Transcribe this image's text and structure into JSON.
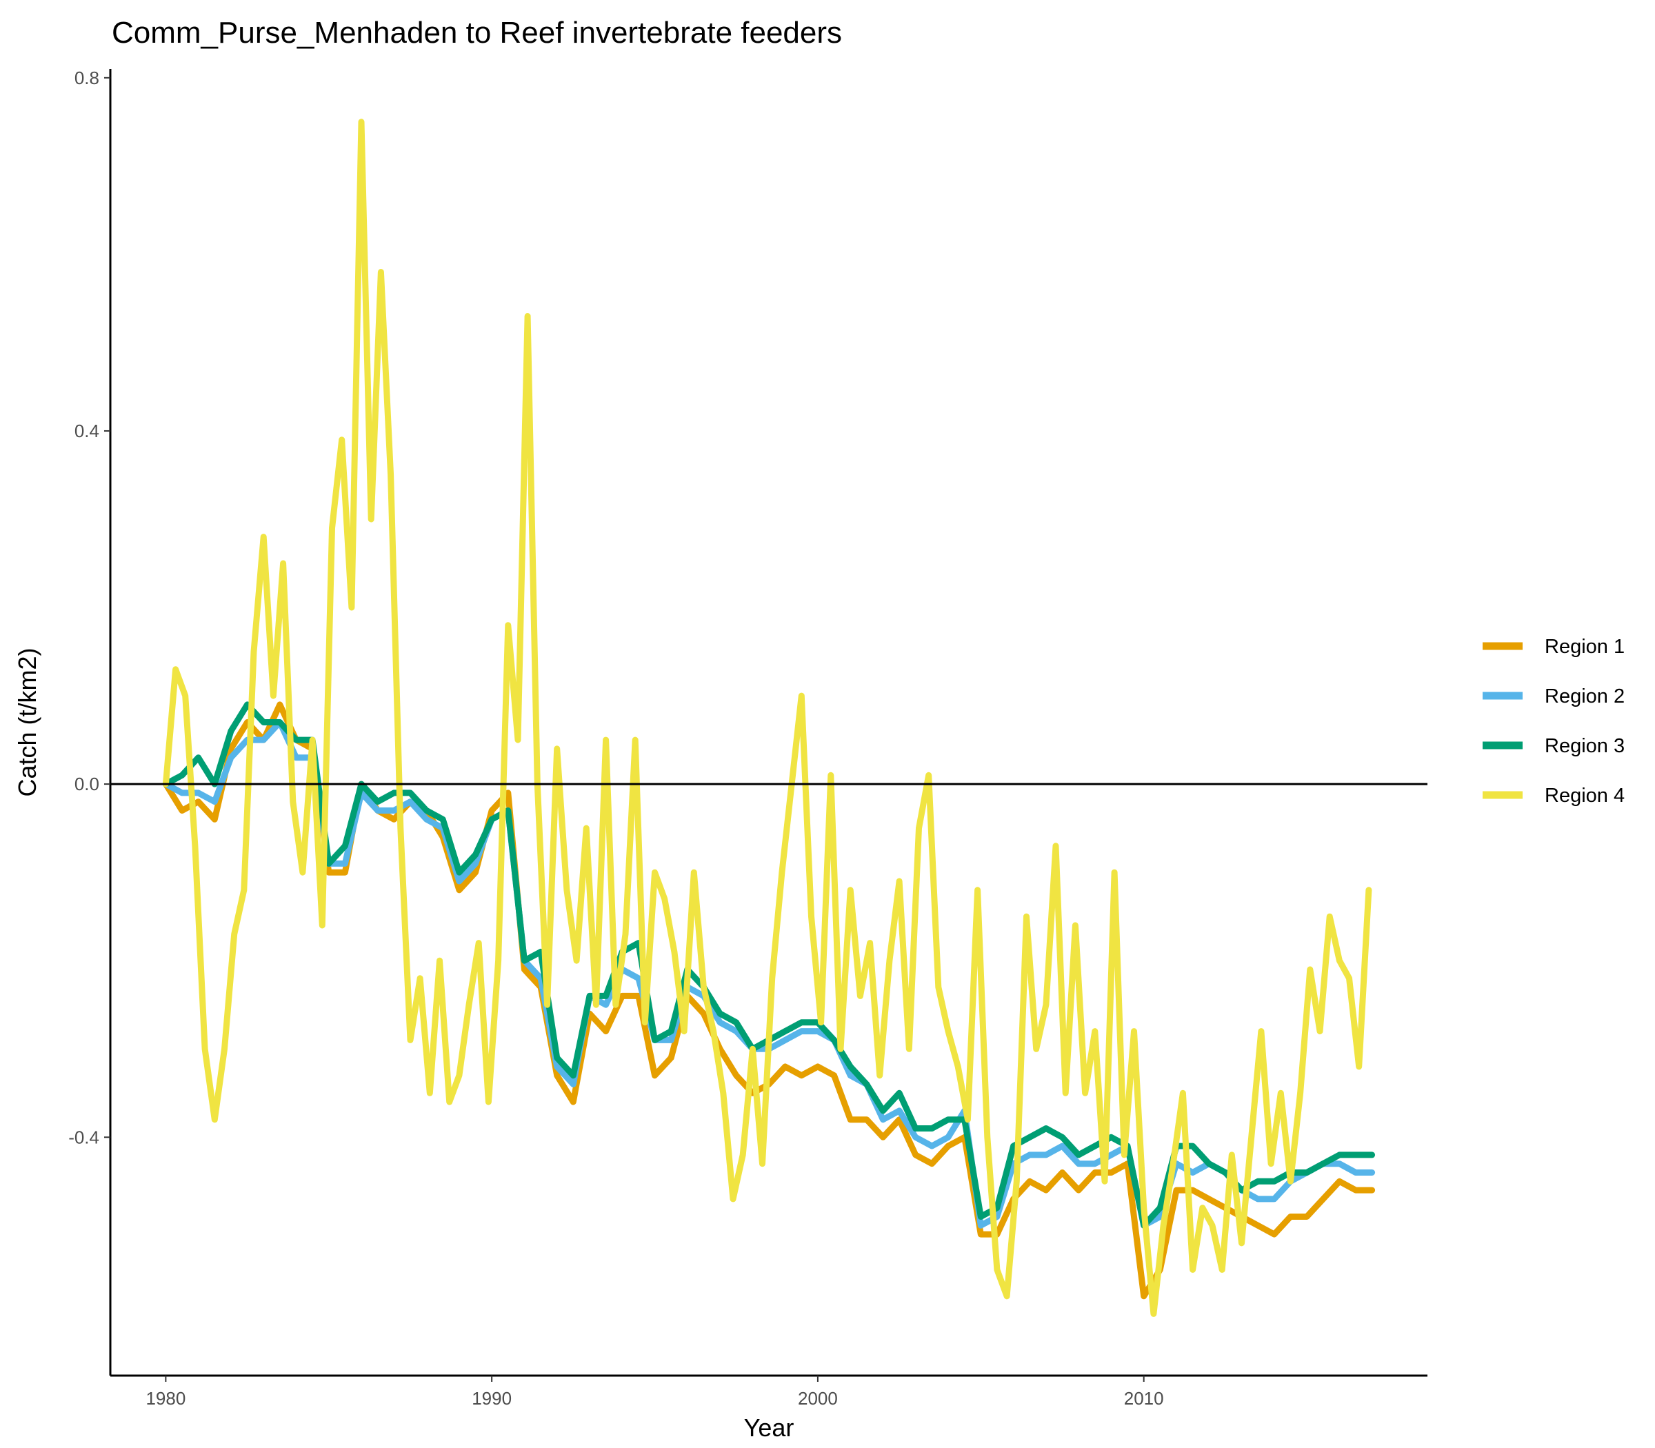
{
  "chart_data": {
    "type": "line",
    "title": "Comm_Purse_Menhaden to Reef invertebrate feeders",
    "xlabel": "Year",
    "ylabel": "Catch (t/km2)",
    "xlim": [
      1978.3,
      2018.7
    ],
    "ylim": [
      -0.67,
      0.81
    ],
    "xticks": [
      1980,
      1990,
      2000,
      2010
    ],
    "yticks": [
      0.8,
      0.4,
      0.0,
      -0.4
    ],
    "ytick_labels": [
      "0.8",
      "0.4",
      "0.0",
      "-0.4"
    ],
    "reference_line_y": 0.0,
    "grid": false,
    "legend_position": "right",
    "series": [
      {
        "name": "Region 1",
        "color": "#E69F00",
        "x": [
          1980.0,
          1980.5,
          1981.0,
          1981.5,
          1982.0,
          1982.5,
          1983.0,
          1983.5,
          1984.0,
          1984.5,
          1985.0,
          1985.5,
          1986.0,
          1986.5,
          1987.0,
          1987.5,
          1988.0,
          1988.5,
          1989.0,
          1989.5,
          1990.0,
          1990.5,
          1991.0,
          1991.5,
          1992.0,
          1992.5,
          1993.0,
          1993.5,
          1994.0,
          1994.5,
          1995.0,
          1995.5,
          1996.0,
          1996.5,
          1997.0,
          1997.5,
          1998.0,
          1998.5,
          1999.0,
          1999.5,
          2000.0,
          2000.5,
          2001.0,
          2001.5,
          2002.0,
          2002.5,
          2003.0,
          2003.5,
          2004.0,
          2004.5,
          2005.0,
          2005.5,
          2006.0,
          2006.5,
          2007.0,
          2007.5,
          2008.0,
          2008.5,
          2009.0,
          2009.5,
          2010.0,
          2010.5,
          2011.0,
          2011.5,
          2012.0,
          2012.5,
          2013.0,
          2013.5,
          2014.0,
          2014.5,
          2015.0,
          2015.5,
          2016.0,
          2016.5,
          2017.0
        ],
        "values": [
          0.0,
          -0.03,
          -0.02,
          -0.04,
          0.04,
          0.07,
          0.05,
          0.09,
          0.05,
          0.04,
          -0.1,
          -0.1,
          0.0,
          -0.03,
          -0.04,
          -0.02,
          -0.03,
          -0.06,
          -0.12,
          -0.1,
          -0.03,
          -0.01,
          -0.21,
          -0.23,
          -0.33,
          -0.36,
          -0.26,
          -0.28,
          -0.24,
          -0.24,
          -0.33,
          -0.31,
          -0.24,
          -0.26,
          -0.3,
          -0.33,
          -0.35,
          -0.34,
          -0.32,
          -0.33,
          -0.32,
          -0.33,
          -0.38,
          -0.38,
          -0.4,
          -0.38,
          -0.42,
          -0.43,
          -0.41,
          -0.4,
          -0.51,
          -0.51,
          -0.47,
          -0.45,
          -0.46,
          -0.44,
          -0.46,
          -0.44,
          -0.44,
          -0.43,
          -0.58,
          -0.55,
          -0.46,
          -0.46,
          -0.47,
          -0.48,
          -0.49,
          -0.5,
          -0.51,
          -0.49,
          -0.49,
          -0.47,
          -0.45,
          -0.46,
          -0.46
        ]
      },
      {
        "name": "Region 2",
        "color": "#56B4E9",
        "x": [
          1980.0,
          1980.5,
          1981.0,
          1981.5,
          1982.0,
          1982.5,
          1983.0,
          1983.5,
          1984.0,
          1984.5,
          1985.0,
          1985.5,
          1986.0,
          1986.5,
          1987.0,
          1987.5,
          1988.0,
          1988.5,
          1989.0,
          1989.5,
          1990.0,
          1990.5,
          1991.0,
          1991.5,
          1992.0,
          1992.5,
          1993.0,
          1993.5,
          1994.0,
          1994.5,
          1995.0,
          1995.5,
          1996.0,
          1996.5,
          1997.0,
          1997.5,
          1998.0,
          1998.5,
          1999.0,
          1999.5,
          2000.0,
          2000.5,
          2001.0,
          2001.5,
          2002.0,
          2002.5,
          2003.0,
          2003.5,
          2004.0,
          2004.5,
          2005.0,
          2005.5,
          2006.0,
          2006.5,
          2007.0,
          2007.5,
          2008.0,
          2008.5,
          2009.0,
          2009.5,
          2010.0,
          2010.5,
          2011.0,
          2011.5,
          2012.0,
          2012.5,
          2013.0,
          2013.5,
          2014.0,
          2014.5,
          2015.0,
          2015.5,
          2016.0,
          2016.5,
          2017.0
        ],
        "values": [
          0.0,
          -0.01,
          -0.01,
          -0.02,
          0.03,
          0.05,
          0.05,
          0.07,
          0.03,
          0.03,
          -0.09,
          -0.09,
          -0.01,
          -0.03,
          -0.03,
          -0.02,
          -0.04,
          -0.05,
          -0.11,
          -0.09,
          -0.04,
          -0.03,
          -0.2,
          -0.22,
          -0.32,
          -0.34,
          -0.24,
          -0.25,
          -0.21,
          -0.22,
          -0.29,
          -0.29,
          -0.23,
          -0.24,
          -0.27,
          -0.28,
          -0.3,
          -0.3,
          -0.29,
          -0.28,
          -0.28,
          -0.29,
          -0.33,
          -0.34,
          -0.38,
          -0.37,
          -0.4,
          -0.41,
          -0.4,
          -0.37,
          -0.5,
          -0.49,
          -0.43,
          -0.42,
          -0.42,
          -0.41,
          -0.43,
          -0.43,
          -0.42,
          -0.41,
          -0.5,
          -0.49,
          -0.43,
          -0.44,
          -0.43,
          -0.44,
          -0.46,
          -0.47,
          -0.47,
          -0.45,
          -0.44,
          -0.43,
          -0.43,
          -0.44,
          -0.44
        ]
      },
      {
        "name": "Region 3",
        "color": "#009E73",
        "x": [
          1980.0,
          1980.5,
          1981.0,
          1981.5,
          1982.0,
          1982.5,
          1983.0,
          1983.5,
          1984.0,
          1984.5,
          1985.0,
          1985.5,
          1986.0,
          1986.5,
          1987.0,
          1987.5,
          1988.0,
          1988.5,
          1989.0,
          1989.5,
          1990.0,
          1990.5,
          1991.0,
          1991.5,
          1992.0,
          1992.5,
          1993.0,
          1993.5,
          1994.0,
          1994.5,
          1995.0,
          1995.5,
          1996.0,
          1996.5,
          1997.0,
          1997.5,
          1998.0,
          1998.5,
          1999.0,
          1999.5,
          2000.0,
          2000.5,
          2001.0,
          2001.5,
          2002.0,
          2002.5,
          2003.0,
          2003.5,
          2004.0,
          2004.5,
          2005.0,
          2005.5,
          2006.0,
          2006.5,
          2007.0,
          2007.5,
          2008.0,
          2008.5,
          2009.0,
          2009.5,
          2010.0,
          2010.5,
          2011.0,
          2011.5,
          2012.0,
          2012.5,
          2013.0,
          2013.5,
          2014.0,
          2014.5,
          2015.0,
          2015.5,
          2016.0,
          2016.5,
          2017.0
        ],
        "values": [
          0.0,
          0.01,
          0.03,
          0.0,
          0.06,
          0.09,
          0.07,
          0.07,
          0.05,
          0.05,
          -0.09,
          -0.07,
          0.0,
          -0.02,
          -0.01,
          -0.01,
          -0.03,
          -0.04,
          -0.1,
          -0.08,
          -0.04,
          -0.03,
          -0.2,
          -0.19,
          -0.31,
          -0.33,
          -0.24,
          -0.24,
          -0.19,
          -0.18,
          -0.29,
          -0.28,
          -0.21,
          -0.23,
          -0.26,
          -0.27,
          -0.3,
          -0.29,
          -0.28,
          -0.27,
          -0.27,
          -0.29,
          -0.32,
          -0.34,
          -0.37,
          -0.35,
          -0.39,
          -0.39,
          -0.38,
          -0.38,
          -0.49,
          -0.48,
          -0.41,
          -0.4,
          -0.39,
          -0.4,
          -0.42,
          -0.41,
          -0.4,
          -0.41,
          -0.5,
          -0.48,
          -0.41,
          -0.41,
          -0.43,
          -0.44,
          -0.46,
          -0.45,
          -0.45,
          -0.44,
          -0.44,
          -0.43,
          -0.42,
          -0.42,
          -0.42
        ]
      },
      {
        "name": "Region 4",
        "color": "#F0E442",
        "x": [
          1980.0,
          1980.3,
          1980.6,
          1980.9,
          1981.2,
          1981.5,
          1981.8,
          1982.1,
          1982.4,
          1982.7,
          1983.0,
          1983.3,
          1983.6,
          1983.9,
          1984.2,
          1984.5,
          1984.8,
          1985.1,
          1985.4,
          1985.7,
          1986.0,
          1986.3,
          1986.6,
          1986.9,
          1987.2,
          1987.5,
          1987.8,
          1988.1,
          1988.4,
          1988.7,
          1989.0,
          1989.3,
          1989.6,
          1989.9,
          1990.2,
          1990.5,
          1990.8,
          1991.1,
          1991.4,
          1991.7,
          1992.0,
          1992.3,
          1992.6,
          1992.9,
          1993.2,
          1993.5,
          1993.8,
          1994.1,
          1994.4,
          1994.7,
          1995.0,
          1995.3,
          1995.6,
          1995.9,
          1996.2,
          1996.5,
          1996.8,
          1997.1,
          1997.4,
          1997.7,
          1998.0,
          1998.3,
          1998.6,
          1998.9,
          1999.2,
          1999.5,
          1999.8,
          2000.1,
          2000.4,
          2000.7,
          2001.0,
          2001.3,
          2001.6,
          2001.9,
          2002.2,
          2002.5,
          2002.8,
          2003.1,
          2003.4,
          2003.7,
          2004.0,
          2004.3,
          2004.6,
          2004.9,
          2005.2,
          2005.5,
          2005.8,
          2006.1,
          2006.4,
          2006.7,
          2007.0,
          2007.3,
          2007.6,
          2007.9,
          2008.2,
          2008.5,
          2008.8,
          2009.1,
          2009.4,
          2009.7,
          2010.0,
          2010.3,
          2010.6,
          2010.9,
          2011.2,
          2011.5,
          2011.8,
          2012.1,
          2012.4,
          2012.7,
          2013.0,
          2013.3,
          2013.6,
          2013.9,
          2014.2,
          2014.5,
          2014.8,
          2015.1,
          2015.4,
          2015.7,
          2016.0,
          2016.3,
          2016.6,
          2016.9
        ],
        "values": [
          0.0,
          0.13,
          0.1,
          -0.07,
          -0.3,
          -0.38,
          -0.3,
          -0.17,
          -0.12,
          0.15,
          0.28,
          0.1,
          0.25,
          -0.02,
          -0.1,
          0.05,
          -0.16,
          0.29,
          0.39,
          0.2,
          0.75,
          0.3,
          0.58,
          0.35,
          -0.05,
          -0.29,
          -0.22,
          -0.35,
          -0.2,
          -0.36,
          -0.33,
          -0.25,
          -0.18,
          -0.36,
          -0.2,
          0.18,
          0.05,
          0.53,
          0.0,
          -0.25,
          0.04,
          -0.12,
          -0.2,
          -0.05,
          -0.25,
          0.05,
          -0.25,
          -0.17,
          0.05,
          -0.27,
          -0.1,
          -0.13,
          -0.19,
          -0.28,
          -0.1,
          -0.23,
          -0.28,
          -0.35,
          -0.47,
          -0.42,
          -0.3,
          -0.43,
          -0.22,
          -0.1,
          0.0,
          0.1,
          -0.15,
          -0.27,
          0.01,
          -0.3,
          -0.12,
          -0.24,
          -0.18,
          -0.33,
          -0.2,
          -0.11,
          -0.3,
          -0.05,
          0.01,
          -0.23,
          -0.28,
          -0.32,
          -0.38,
          -0.12,
          -0.4,
          -0.55,
          -0.58,
          -0.45,
          -0.15,
          -0.3,
          -0.25,
          -0.07,
          -0.35,
          -0.16,
          -0.35,
          -0.28,
          -0.45,
          -0.1,
          -0.42,
          -0.28,
          -0.48,
          -0.6,
          -0.5,
          -0.43,
          -0.35,
          -0.55,
          -0.48,
          -0.5,
          -0.55,
          -0.42,
          -0.52,
          -0.4,
          -0.28,
          -0.43,
          -0.35,
          -0.45,
          -0.35,
          -0.21,
          -0.28,
          -0.15,
          -0.2,
          -0.22,
          -0.32,
          -0.12
        ]
      }
    ]
  }
}
